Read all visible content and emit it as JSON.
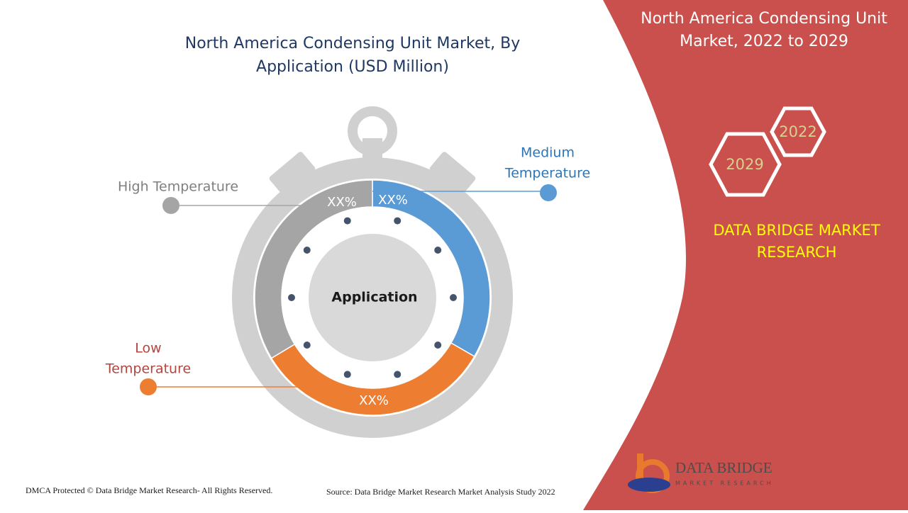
{
  "header": {
    "title_lines": [
      "North America Condensing Unit Market, By",
      "Application (USD Million)"
    ]
  },
  "panel": {
    "title_lines": [
      "North America Condensing Unit",
      "Market, 2022 to 2029"
    ],
    "years": [
      "2022",
      "2029"
    ],
    "brand_lines": [
      "DATA BRIDGE MARKET",
      "RESEARCH"
    ]
  },
  "diagram": {
    "center_label": "Application",
    "segments": [
      {
        "name_lines": [
          "Medium",
          "Temperature"
        ],
        "label": "XX%",
        "color": "#5b9bd5"
      },
      {
        "name_lines": [
          "Low",
          "Temperature"
        ],
        "label": "XX%",
        "color": "#ed7d31"
      },
      {
        "name_lines": [
          "High Temperature"
        ],
        "label": "XX%",
        "color": "#a5a5a5"
      }
    ]
  },
  "logo": {
    "name": "DATA BRIDGE",
    "tagline": "MARKET RESEARCH"
  },
  "footer": {
    "copyright": "DMCA Protected © Data Bridge Market Research- All Rights Reserved.",
    "source": "Source: Data Bridge Market Research Market Analysis Study 2022"
  }
}
